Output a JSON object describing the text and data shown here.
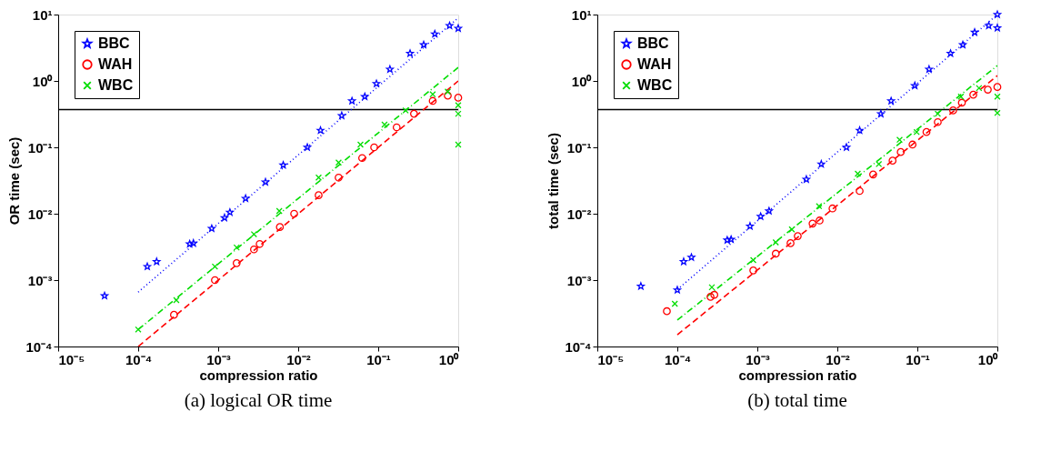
{
  "chart_data": [
    {
      "type": "scatter",
      "title": "(a) logical OR time",
      "xlabel": "compression ratio",
      "ylabel": "OR time (sec)",
      "log": "xy",
      "grid": false,
      "legend": "top left",
      "xlim": [
        1e-05,
        1
      ],
      "ylim": [
        0.0001,
        10
      ],
      "xticks": [
        {
          "value": 1e-05,
          "label": "10⁻⁵"
        },
        {
          "value": 0.0001,
          "label": "10⁻⁴"
        },
        {
          "value": 0.001,
          "label": "10⁻³"
        },
        {
          "value": 0.01,
          "label": "10⁻²"
        },
        {
          "value": 0.1,
          "label": "10⁻¹"
        },
        {
          "value": 1,
          "label": "10⁰"
        }
      ],
      "yticks": [
        {
          "value": 0.0001,
          "label": "10⁻⁴"
        },
        {
          "value": 0.001,
          "label": "10⁻³"
        },
        {
          "value": 0.01,
          "label": "10⁻²"
        },
        {
          "value": 0.1,
          "label": "10⁻¹"
        },
        {
          "value": 1,
          "label": "10⁰"
        },
        {
          "value": 10,
          "label": "10¹"
        }
      ],
      "ref_lines": [
        {
          "axis": "y",
          "value": 0.37,
          "color": "#000000"
        }
      ],
      "series": [
        {
          "type": "line",
          "color": "#0000ff",
          "line_style": "dotted",
          "x": [
            0.0001,
            1
          ],
          "values": [
            0.00066,
            8.9
          ]
        },
        {
          "type": "line",
          "color": "#ff0000",
          "line_style": "dashed",
          "x": [
            0.0001,
            1
          ],
          "values": [
            0.0001,
            1.0
          ]
        },
        {
          "type": "line",
          "color": "#00dd00",
          "line_style": "dashdot",
          "x": [
            0.0001,
            1
          ],
          "values": [
            0.00018,
            1.6
          ]
        },
        {
          "name": "BBC",
          "color": "#0000ff",
          "marker": "star",
          "x": [
            3.8e-05,
            0.00013,
            0.00017,
            0.00044,
            0.00049,
            0.00083,
            0.0012,
            0.0014,
            0.0022,
            0.0039,
            0.0065,
            0.013,
            0.019,
            0.035,
            0.047,
            0.068,
            0.095,
            0.14,
            0.25,
            0.37,
            0.51,
            0.78,
            1
          ],
          "values": [
            0.00058,
            0.0016,
            0.0019,
            0.0035,
            0.0036,
            0.006,
            0.0087,
            0.0105,
            0.017,
            0.03,
            0.054,
            0.1,
            0.18,
            0.3,
            0.5,
            0.58,
            0.91,
            1.5,
            2.6,
            3.5,
            5.1,
            6.8,
            6.2
          ]
        },
        {
          "name": "WAH",
          "color": "#ff0000",
          "marker": "circle",
          "x": [
            0.00028,
            0.00091,
            0.0017,
            0.0028,
            0.0033,
            0.0059,
            0.0089,
            0.018,
            0.032,
            0.063,
            0.089,
            0.17,
            0.28,
            0.48,
            0.74,
            1
          ],
          "values": [
            0.0003,
            0.001,
            0.0018,
            0.0029,
            0.0035,
            0.0063,
            0.01,
            0.019,
            0.035,
            0.069,
            0.1,
            0.2,
            0.32,
            0.5,
            0.6,
            0.56
          ]
        },
        {
          "name": "WBC",
          "color": "#00dd00",
          "marker": "cross",
          "x": [
            0.0001,
            0.0003,
            0.00091,
            0.0017,
            0.0028,
            0.0058,
            0.018,
            0.032,
            0.06,
            0.12,
            0.22,
            0.48,
            0.74,
            1,
            1,
            1
          ],
          "values": [
            0.00018,
            0.0005,
            0.0016,
            0.0031,
            0.0049,
            0.011,
            0.035,
            0.059,
            0.11,
            0.22,
            0.36,
            0.63,
            0.69,
            0.43,
            0.32,
            0.11
          ]
        }
      ]
    },
    {
      "type": "scatter",
      "title": "(b) total time",
      "xlabel": "compression ratio",
      "ylabel": "total time (sec)",
      "log": "xy",
      "grid": false,
      "legend": "top left",
      "xlim": [
        1e-05,
        1
      ],
      "ylim": [
        0.0001,
        10
      ],
      "xticks": [
        {
          "value": 1e-05,
          "label": "10⁻⁵"
        },
        {
          "value": 0.0001,
          "label": "10⁻⁴"
        },
        {
          "value": 0.001,
          "label": "10⁻³"
        },
        {
          "value": 0.01,
          "label": "10⁻²"
        },
        {
          "value": 0.1,
          "label": "10⁻¹"
        },
        {
          "value": 1,
          "label": "10⁰"
        }
      ],
      "yticks": [
        {
          "value": 0.0001,
          "label": "10⁻⁴"
        },
        {
          "value": 0.001,
          "label": "10⁻³"
        },
        {
          "value": 0.01,
          "label": "10⁻²"
        },
        {
          "value": 0.1,
          "label": "10⁻¹"
        },
        {
          "value": 1,
          "label": "10⁰"
        },
        {
          "value": 10,
          "label": "10¹"
        }
      ],
      "ref_lines": [
        {
          "axis": "y",
          "value": 0.37,
          "color": "#000000"
        }
      ],
      "series": [
        {
          "type": "line",
          "color": "#0000ff",
          "line_style": "dotted",
          "x": [
            0.0001,
            1
          ],
          "values": [
            0.00072,
            10
          ]
        },
        {
          "type": "line",
          "color": "#ff0000",
          "line_style": "dashed",
          "x": [
            0.0001,
            1
          ],
          "values": [
            0.00015,
            1.2
          ]
        },
        {
          "type": "line",
          "color": "#00dd00",
          "line_style": "dashdot",
          "x": [
            0.0001,
            1
          ],
          "values": [
            0.00025,
            1.7
          ]
        },
        {
          "name": "BBC",
          "color": "#0000ff",
          "marker": "star",
          "x": [
            3.5e-05,
            0.0001,
            0.00012,
            0.00015,
            0.00042,
            0.00047,
            0.00081,
            0.0011,
            0.0014,
            0.0041,
            0.0063,
            0.013,
            0.019,
            0.035,
            0.047,
            0.093,
            0.14,
            0.26,
            0.37,
            0.52,
            0.78,
            1,
            1
          ],
          "values": [
            0.00081,
            0.00071,
            0.0019,
            0.0022,
            0.004,
            0.0041,
            0.0065,
            0.0091,
            0.011,
            0.033,
            0.056,
            0.1,
            0.18,
            0.32,
            0.5,
            0.85,
            1.5,
            2.6,
            3.5,
            5.4,
            6.8,
            6.3,
            10
          ]
        },
        {
          "name": "WAH",
          "color": "#ff0000",
          "marker": "circle",
          "x": [
            7.4e-05,
            0.00026,
            0.00029,
            0.00089,
            0.0017,
            0.0026,
            0.0032,
            0.0049,
            0.006,
            0.0087,
            0.019,
            0.028,
            0.049,
            0.062,
            0.087,
            0.13,
            0.18,
            0.28,
            0.36,
            0.5,
            0.76,
            1
          ],
          "values": [
            0.00034,
            0.00056,
            0.0006,
            0.0014,
            0.0025,
            0.0036,
            0.0046,
            0.0071,
            0.0079,
            0.012,
            0.022,
            0.039,
            0.063,
            0.085,
            0.11,
            0.17,
            0.24,
            0.36,
            0.47,
            0.62,
            0.74,
            0.81
          ]
        },
        {
          "name": "WBC",
          "color": "#00dd00",
          "marker": "cross",
          "x": [
            9.3e-05,
            0.00027,
            0.00089,
            0.0017,
            0.0027,
            0.0059,
            0.018,
            0.033,
            0.06,
            0.098,
            0.18,
            0.35,
            0.59,
            1,
            1
          ],
          "values": [
            0.00044,
            0.00078,
            0.002,
            0.0037,
            0.0058,
            0.013,
            0.04,
            0.056,
            0.13,
            0.17,
            0.32,
            0.58,
            0.78,
            0.58,
            0.33
          ]
        }
      ]
    }
  ]
}
